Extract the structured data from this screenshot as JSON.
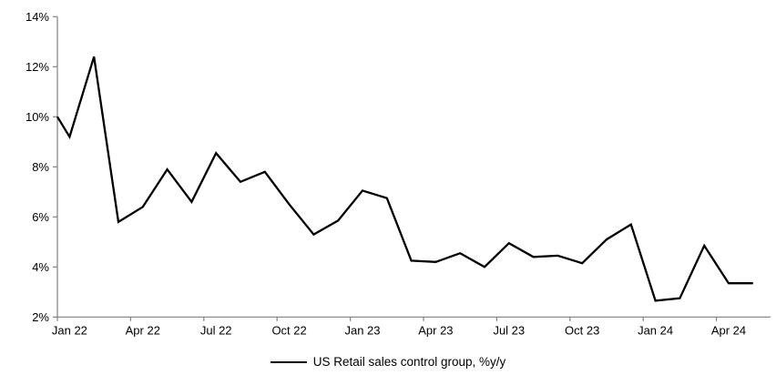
{
  "chart_data": {
    "type": "line",
    "title": "",
    "xlabel": "",
    "ylabel": "",
    "ylim": [
      2,
      14
    ],
    "y_tick_step": 2,
    "y_tick_labels": [
      "2%",
      "4%",
      "6%",
      "8%",
      "10%",
      "12%",
      "14%"
    ],
    "x_categories": [
      "Jan 22",
      "Feb 22",
      "Mar 22",
      "Apr 22",
      "May 22",
      "Jun 22",
      "Jul 22",
      "Aug 22",
      "Sep 22",
      "Oct 22",
      "Nov 22",
      "Dec 22",
      "Jan 23",
      "Feb 23",
      "Mar 23",
      "Apr 23",
      "May 23",
      "Jun 23",
      "Jul 23",
      "Aug 23",
      "Sep 23",
      "Oct 23",
      "Nov 23",
      "Dec 23",
      "Jan 24",
      "Feb 24",
      "Mar 24",
      "Apr 24",
      "May 24"
    ],
    "x_tick_labels": [
      "Jan 22",
      "Apr 22",
      "Jul 22",
      "Oct 22",
      "Jan 23",
      "Apr 23",
      "Jul 23",
      "Oct 23",
      "Jan 24",
      "Apr 24"
    ],
    "x_label_interval_months": 3,
    "grid": false,
    "legend_position": "bottom-center",
    "axis_color": "#808080",
    "text_color": "#000000",
    "left_edge_clip_value": 10.0,
    "series": [
      {
        "name": "US Retail sales control group, %y/y",
        "color": "#000000",
        "values": [
          9.2,
          12.4,
          5.8,
          6.4,
          7.9,
          6.6,
          8.55,
          7.4,
          7.8,
          6.5,
          5.3,
          5.85,
          7.05,
          6.75,
          4.25,
          4.2,
          4.55,
          4.0,
          4.95,
          4.4,
          4.45,
          4.15,
          5.1,
          5.7,
          2.65,
          2.75,
          4.85,
          3.35,
          3.35
        ]
      }
    ]
  },
  "legend": {
    "label": "US Retail sales control group, %y/y"
  }
}
